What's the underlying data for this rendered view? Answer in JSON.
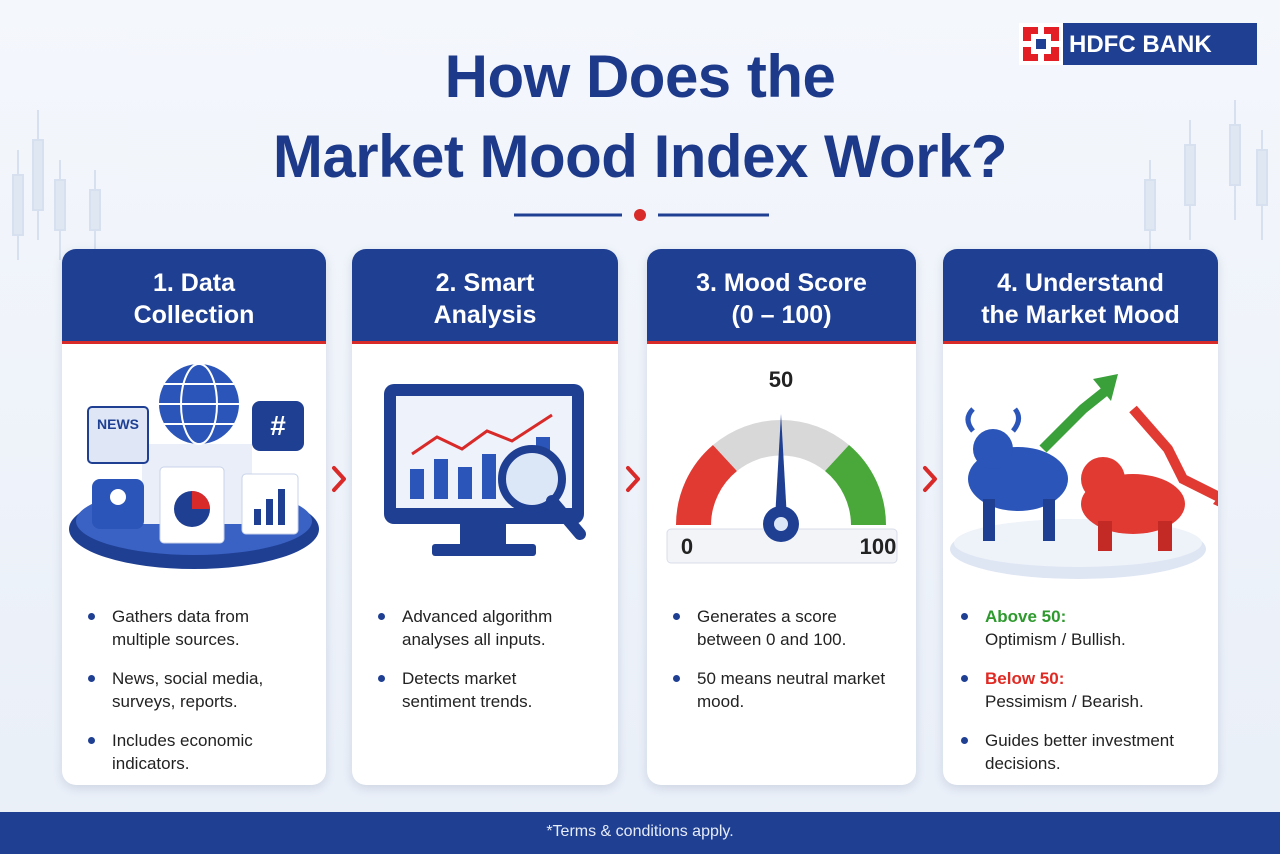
{
  "logo": {
    "text": "HDFC BANK"
  },
  "header": {
    "title_lines": [
      "How Does the",
      "Market Mood Index Work?"
    ]
  },
  "cards": [
    {
      "title_lines": [
        "1. Data",
        "Collection"
      ],
      "illustration_labels": [
        "NEWS",
        "#"
      ],
      "bullets": [
        "Gathers data from multiple sources.",
        "News, social media, surveys, reports.",
        "Includes economic indicators."
      ]
    },
    {
      "title_lines": [
        "2. Smart",
        "Analysis"
      ],
      "bullets": [
        "Advanced algorithm analyses all inputs.",
        "Detects market sentiment trends."
      ]
    },
    {
      "title_lines": [
        "3. Mood Score",
        "(0 – 100)"
      ],
      "gauge": {
        "min": 0,
        "mid": 50,
        "max": 100
      },
      "bullets": [
        "Generates a score between 0 and 100.",
        "50 means neutral market mood."
      ]
    },
    {
      "title_lines": [
        "4. Understand",
        "the Market Mood"
      ],
      "bullets": [
        {
          "label": "Above 50:",
          "text": "Optimism / Bullish."
        },
        {
          "label": "Below 50:",
          "text": "Pessimism / Bearish."
        },
        {
          "text": "Guides better investment decisions."
        }
      ]
    }
  ],
  "footer": {
    "note": "*Terms & conditions apply."
  }
}
